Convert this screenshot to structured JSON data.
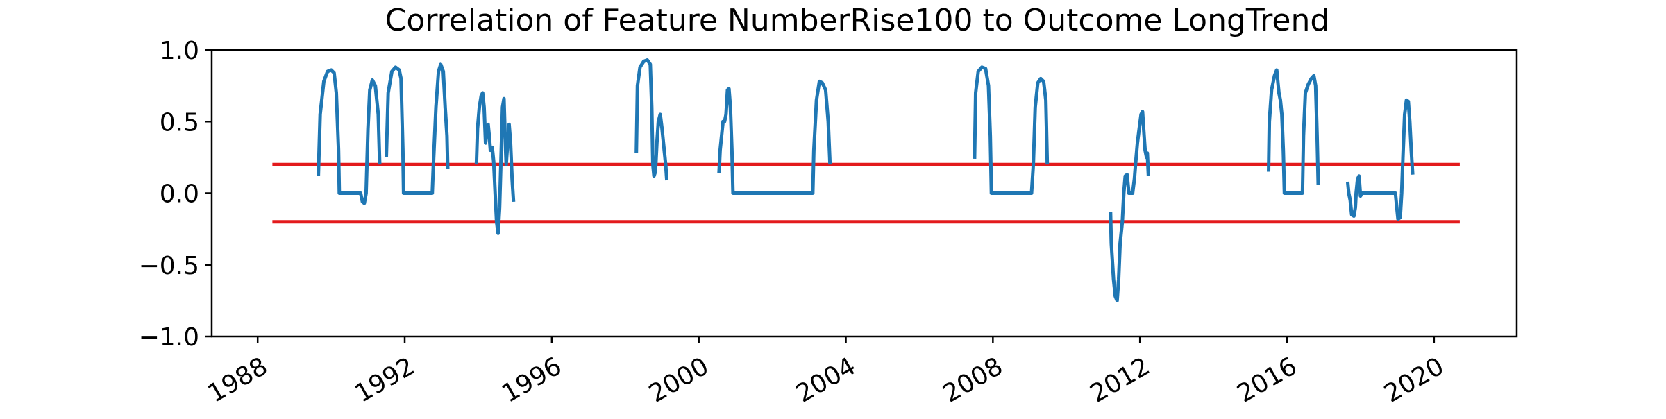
{
  "chart_data": {
    "type": "line",
    "title": "Correlation of Feature NumberRise100 to Outcome LongTrend",
    "xlabel": "",
    "ylabel": "",
    "xlim": [
      1986.75,
      2022.25
    ],
    "ylim": [
      -1.0,
      1.0
    ],
    "xticks": [
      1988,
      1992,
      1996,
      2000,
      2004,
      2008,
      2012,
      2016,
      2020
    ],
    "xtick_labels": [
      "1988",
      "1992",
      "1996",
      "2000",
      "2004",
      "2008",
      "2012",
      "2016",
      "2020"
    ],
    "yticks": [
      -1.0,
      -0.5,
      0.0,
      0.5,
      1.0
    ],
    "ytick_labels": [
      "−1.0",
      "−0.5",
      "0.0",
      "0.5",
      "1.0"
    ],
    "grid": false,
    "thresholds": [
      {
        "y": 0.2,
        "x": [
          1988.4,
          2020.7
        ],
        "color": "#e31a1c"
      },
      {
        "y": -0.2,
        "x": [
          1988.4,
          2020.7
        ],
        "color": "#e31a1c"
      }
    ],
    "series": [
      {
        "color": "#1f77b4",
        "segments": [
          [
            [
              1989.65,
              0.12
            ],
            [
              1989.7,
              0.55
            ],
            [
              1989.8,
              0.78
            ],
            [
              1989.9,
              0.85
            ],
            [
              1990.0,
              0.86
            ],
            [
              1990.08,
              0.84
            ],
            [
              1990.14,
              0.7
            ],
            [
              1990.2,
              0.3
            ],
            [
              1990.22,
              0.0
            ],
            [
              1990.4,
              0.0
            ],
            [
              1990.6,
              0.0
            ],
            [
              1990.8,
              0.0
            ],
            [
              1990.85,
              -0.06
            ],
            [
              1990.9,
              -0.07
            ],
            [
              1990.95,
              0.0
            ],
            [
              1991.0,
              0.45
            ],
            [
              1991.05,
              0.72
            ],
            [
              1991.12,
              0.79
            ],
            [
              1991.2,
              0.75
            ],
            [
              1991.28,
              0.55
            ],
            [
              1991.32,
              0.2
            ]
          ],
          [
            [
              1991.5,
              0.25
            ],
            [
              1991.55,
              0.7
            ],
            [
              1991.65,
              0.85
            ],
            [
              1991.75,
              0.88
            ],
            [
              1991.85,
              0.86
            ],
            [
              1991.9,
              0.8
            ],
            [
              1991.95,
              0.3
            ],
            [
              1991.97,
              0.0
            ],
            [
              1992.3,
              0.0
            ],
            [
              1992.6,
              0.0
            ],
            [
              1992.75,
              0.0
            ],
            [
              1992.78,
              0.2
            ],
            [
              1992.85,
              0.6
            ],
            [
              1992.92,
              0.85
            ],
            [
              1992.98,
              0.9
            ],
            [
              1993.05,
              0.85
            ],
            [
              1993.1,
              0.6
            ],
            [
              1993.15,
              0.4
            ],
            [
              1993.17,
              0.17
            ]
          ],
          [
            [
              1993.95,
              0.2
            ],
            [
              1993.98,
              0.45
            ],
            [
              1994.03,
              0.6
            ],
            [
              1994.08,
              0.68
            ],
            [
              1994.12,
              0.7
            ],
            [
              1994.16,
              0.6
            ],
            [
              1994.2,
              0.35
            ],
            [
              1994.23,
              0.45
            ],
            [
              1994.27,
              0.48
            ],
            [
              1994.3,
              0.4
            ],
            [
              1994.33,
              0.3
            ],
            [
              1994.38,
              0.32
            ],
            [
              1994.42,
              0.22
            ],
            [
              1994.46,
              0.0
            ],
            [
              1994.5,
              -0.2
            ],
            [
              1994.54,
              -0.28
            ],
            [
              1994.58,
              -0.1
            ],
            [
              1994.62,
              0.25
            ],
            [
              1994.66,
              0.6
            ],
            [
              1994.7,
              0.66
            ],
            [
              1994.73,
              0.4
            ],
            [
              1994.76,
              0.2
            ],
            [
              1994.8,
              0.35
            ],
            [
              1994.84,
              0.48
            ],
            [
              1994.88,
              0.35
            ],
            [
              1994.92,
              0.1
            ],
            [
              1994.96,
              -0.06
            ]
          ],
          [
            [
              1998.3,
              0.28
            ],
            [
              1998.33,
              0.75
            ],
            [
              1998.4,
              0.88
            ],
            [
              1998.5,
              0.92
            ],
            [
              1998.6,
              0.93
            ],
            [
              1998.68,
              0.9
            ],
            [
              1998.72,
              0.6
            ],
            [
              1998.75,
              0.2
            ],
            [
              1998.78,
              0.12
            ],
            [
              1998.82,
              0.15
            ],
            [
              1998.86,
              0.35
            ],
            [
              1998.9,
              0.5
            ],
            [
              1998.95,
              0.55
            ],
            [
              1999.0,
              0.45
            ],
            [
              1999.05,
              0.32
            ],
            [
              1999.1,
              0.2
            ],
            [
              1999.13,
              0.09
            ]
          ],
          [
            [
              2000.55,
              0.14
            ],
            [
              2000.58,
              0.3
            ],
            [
              2000.62,
              0.4
            ],
            [
              2000.66,
              0.5
            ],
            [
              2000.7,
              0.5
            ],
            [
              2000.74,
              0.55
            ],
            [
              2000.78,
              0.72
            ],
            [
              2000.82,
              0.73
            ],
            [
              2000.86,
              0.6
            ],
            [
              2000.9,
              0.3
            ],
            [
              2000.93,
              0.0
            ],
            [
              2001.5,
              0.0
            ],
            [
              2002.0,
              0.0
            ],
            [
              2002.5,
              0.0
            ],
            [
              2003.1,
              0.0
            ],
            [
              2003.13,
              0.3
            ],
            [
              2003.2,
              0.65
            ],
            [
              2003.28,
              0.78
            ],
            [
              2003.36,
              0.77
            ],
            [
              2003.45,
              0.72
            ],
            [
              2003.52,
              0.5
            ],
            [
              2003.57,
              0.2
            ]
          ],
          [
            [
              2007.5,
              0.24
            ],
            [
              2007.53,
              0.7
            ],
            [
              2007.6,
              0.85
            ],
            [
              2007.7,
              0.88
            ],
            [
              2007.8,
              0.87
            ],
            [
              2007.88,
              0.75
            ],
            [
              2007.93,
              0.4
            ],
            [
              2007.96,
              0.0
            ],
            [
              2008.5,
              0.0
            ],
            [
              2009.05,
              0.0
            ],
            [
              2009.1,
              0.2
            ],
            [
              2009.15,
              0.6
            ],
            [
              2009.22,
              0.77
            ],
            [
              2009.3,
              0.8
            ],
            [
              2009.38,
              0.78
            ],
            [
              2009.44,
              0.65
            ],
            [
              2009.48,
              0.2
            ]
          ],
          [
            [
              2011.2,
              -0.13
            ],
            [
              2011.22,
              -0.35
            ],
            [
              2011.28,
              -0.6
            ],
            [
              2011.33,
              -0.72
            ],
            [
              2011.38,
              -0.75
            ],
            [
              2011.42,
              -0.6
            ],
            [
              2011.46,
              -0.35
            ],
            [
              2011.52,
              -0.2
            ],
            [
              2011.56,
              0.0
            ],
            [
              2011.6,
              0.12
            ],
            [
              2011.65,
              0.13
            ],
            [
              2011.7,
              0.0
            ],
            [
              2011.8,
              0.0
            ],
            [
              2011.85,
              0.1
            ],
            [
              2011.88,
              0.2
            ],
            [
              2011.93,
              0.35
            ],
            [
              2011.98,
              0.45
            ],
            [
              2012.03,
              0.55
            ],
            [
              2012.07,
              0.57
            ],
            [
              2012.1,
              0.45
            ],
            [
              2012.14,
              0.3
            ],
            [
              2012.18,
              0.25
            ],
            [
              2012.2,
              0.28
            ],
            [
              2012.23,
              0.12
            ]
          ],
          [
            [
              2015.5,
              0.15
            ],
            [
              2015.52,
              0.5
            ],
            [
              2015.58,
              0.72
            ],
            [
              2015.66,
              0.82
            ],
            [
              2015.72,
              0.86
            ],
            [
              2015.78,
              0.7
            ],
            [
              2015.82,
              0.65
            ],
            [
              2015.86,
              0.55
            ],
            [
              2015.9,
              0.3
            ],
            [
              2015.93,
              0.0
            ],
            [
              2016.3,
              0.0
            ],
            [
              2016.42,
              0.0
            ],
            [
              2016.45,
              0.4
            ],
            [
              2016.5,
              0.7
            ],
            [
              2016.58,
              0.76
            ],
            [
              2016.66,
              0.8
            ],
            [
              2016.73,
              0.82
            ],
            [
              2016.78,
              0.75
            ],
            [
              2016.82,
              0.4
            ],
            [
              2016.85,
              0.06
            ]
          ],
          [
            [
              2017.65,
              0.08
            ],
            [
              2017.68,
              0.0
            ],
            [
              2017.72,
              -0.05
            ],
            [
              2017.76,
              -0.15
            ],
            [
              2017.82,
              -0.16
            ],
            [
              2017.86,
              -0.1
            ],
            [
              2017.88,
              0.0
            ],
            [
              2017.92,
              0.1
            ],
            [
              2017.96,
              0.12
            ],
            [
              2018.0,
              -0.02
            ],
            [
              2018.03,
              0.0
            ],
            [
              2018.5,
              0.0
            ],
            [
              2018.95,
              0.0
            ],
            [
              2018.98,
              -0.08
            ],
            [
              2019.02,
              -0.18
            ],
            [
              2019.08,
              -0.17
            ],
            [
              2019.12,
              0.0
            ],
            [
              2019.16,
              0.3
            ],
            [
              2019.2,
              0.55
            ],
            [
              2019.25,
              0.65
            ],
            [
              2019.3,
              0.64
            ],
            [
              2019.34,
              0.5
            ],
            [
              2019.38,
              0.3
            ],
            [
              2019.42,
              0.13
            ]
          ]
        ]
      }
    ]
  }
}
